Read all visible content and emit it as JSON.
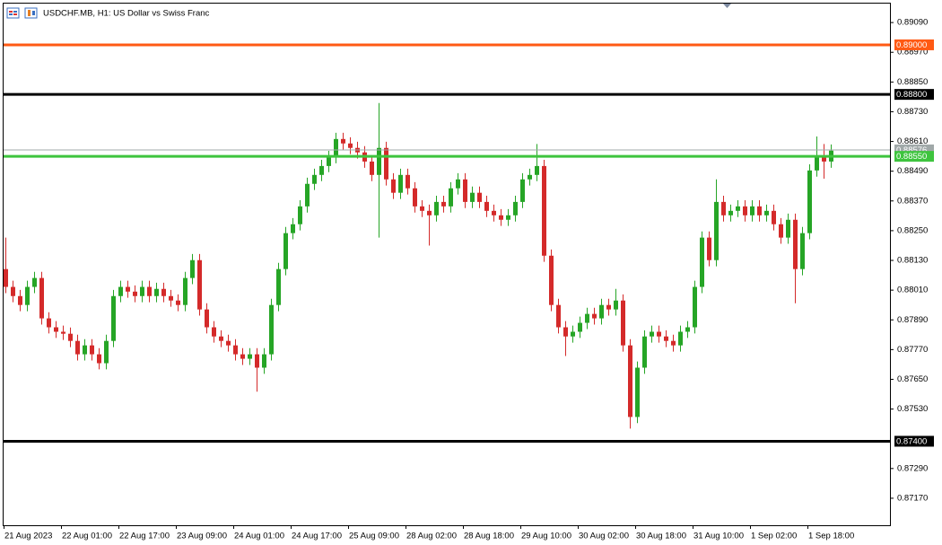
{
  "chart_data": {
    "type": "candlestick",
    "title": "USDCHF.MB, H1:  US Dollar vs Swiss Franc",
    "categories": [
      "21 Aug 2023",
      null,
      null,
      null,
      null,
      null,
      null,
      null,
      "22 Aug 01:00",
      null,
      null,
      null,
      null,
      null,
      null,
      null,
      "22 Aug 17:00",
      null,
      null,
      null,
      null,
      null,
      null,
      null,
      "23 Aug 09:00",
      null,
      null,
      null,
      null,
      null,
      null,
      null,
      "24 Aug 01:00",
      null,
      null,
      null,
      null,
      null,
      null,
      null,
      "24 Aug 17:00",
      null,
      null,
      null,
      null,
      null,
      null,
      null,
      "25 Aug 09:00",
      null,
      null,
      null,
      null,
      null,
      null,
      null,
      "28 Aug 02:00",
      null,
      null,
      null,
      null,
      null,
      null,
      null,
      "28 Aug 18:00",
      null,
      null,
      null,
      null,
      null,
      null,
      null,
      "29 Aug 10:00",
      null,
      null,
      null,
      null,
      null,
      null,
      null,
      "30 Aug 02:00",
      null,
      null,
      null,
      null,
      null,
      null,
      null,
      "30 Aug 18:00",
      null,
      null,
      null,
      null,
      null,
      null,
      null,
      "31 Aug 10:00",
      null,
      null,
      null,
      null,
      null,
      null,
      null,
      "1 Sep 02:00",
      null,
      null,
      null,
      null,
      null,
      null,
      null,
      "1 Sep 18:00",
      null,
      null,
      null
    ],
    "open": [
      0.88095,
      0.88023,
      0.87986,
      0.8795,
      0.88023,
      0.88059,
      0.87896,
      0.8786,
      0.87842,
      0.87834,
      0.87805,
      0.87751,
      0.87787,
      0.87751,
      0.87715,
      0.87805,
      0.87986,
      0.88023,
      0.88004,
      0.87986,
      0.88023,
      0.87986,
      0.88015,
      0.87986,
      0.87968,
      0.8795,
      0.88059,
      0.88131,
      0.87932,
      0.8786,
      0.87823,
      0.87805,
      0.87787,
      0.87751,
      0.87733,
      0.87751,
      0.87697,
      0.87751,
      0.8795,
      0.88095,
      0.8824,
      0.88276,
      0.88348,
      0.88439,
      0.88475,
      0.88511,
      0.88547,
      0.8862,
      0.88602,
      0.88584,
      0.88566,
      0.88529,
      0.88475,
      0.88584,
      0.88457,
      0.88403,
      0.88475,
      0.88421,
      0.88348,
      0.8833,
      0.88312,
      0.88366,
      0.88348,
      0.88421,
      0.88457,
      0.88366,
      0.88403,
      0.88366,
      0.8833,
      0.88312,
      0.88294,
      0.88312,
      0.88366,
      0.88457,
      0.88475,
      0.88511,
      0.88149,
      0.8795,
      0.8786,
      0.87823,
      0.87842,
      0.87878,
      0.87914,
      0.87896,
      0.8795,
      0.87932,
      0.87968,
      0.87787,
      0.87498,
      0.87697,
      0.87823,
      0.87842,
      0.87823,
      0.87805,
      0.87787,
      0.87842,
      0.8786,
      0.88023,
      0.88222,
      0.88131,
      0.88366,
      0.88312,
      0.8833,
      0.88348,
      0.88312,
      0.88348,
      0.88312,
      0.8833,
      0.88276,
      0.88222,
      0.88294,
      0.88095,
      0.8824,
      0.88493,
      0.88547,
      0.88529
    ],
    "high": [
      0.88222,
      0.88048,
      0.88011,
      0.88048,
      0.88084,
      0.88084,
      0.87921,
      0.87885,
      0.87867,
      0.87859,
      0.8783,
      0.87812,
      0.87812,
      0.87776,
      0.8783,
      0.88011,
      0.88048,
      0.88048,
      0.88029,
      0.88048,
      0.88048,
      0.8804,
      0.8804,
      0.88011,
      0.87993,
      0.88084,
      0.88156,
      0.88156,
      0.87957,
      0.87885,
      0.87848,
      0.8783,
      0.87812,
      0.87776,
      0.87776,
      0.87776,
      0.87776,
      0.87975,
      0.8812,
      0.88265,
      0.88301,
      0.88373,
      0.88464,
      0.885,
      0.88536,
      0.88572,
      0.88645,
      0.88645,
      0.88627,
      0.88609,
      0.88591,
      0.88554,
      0.88765,
      0.88609,
      0.88482,
      0.885,
      0.885,
      0.88446,
      0.88373,
      0.88355,
      0.88391,
      0.88391,
      0.88446,
      0.88482,
      0.88482,
      0.88428,
      0.88428,
      0.88391,
      0.88355,
      0.88337,
      0.88337,
      0.88391,
      0.88482,
      0.885,
      0.886,
      0.88536,
      0.88174,
      0.87975,
      0.87885,
      0.87867,
      0.87903,
      0.87939,
      0.87939,
      0.87975,
      0.87975,
      0.88015,
      0.87993,
      0.87812,
      0.87722,
      0.87848,
      0.87867,
      0.87867,
      0.87848,
      0.8783,
      0.87867,
      0.87885,
      0.88048,
      0.88247,
      0.88247,
      0.88457,
      0.88391,
      0.88355,
      0.88373,
      0.88373,
      0.88373,
      0.88373,
      0.88355,
      0.88355,
      0.88301,
      0.88319,
      0.88319,
      0.88265,
      0.88518,
      0.8863,
      0.886,
      0.88598
    ],
    "low": [
      0.87998,
      0.87961,
      0.87925,
      0.87925,
      0.87998,
      0.87871,
      0.87835,
      0.87817,
      0.87809,
      0.8778,
      0.87726,
      0.87726,
      0.87726,
      0.8769,
      0.8769,
      0.8778,
      0.87961,
      0.87979,
      0.87961,
      0.87961,
      0.87961,
      0.87961,
      0.87961,
      0.87943,
      0.87925,
      0.87925,
      0.88034,
      0.87907,
      0.87835,
      0.87798,
      0.8778,
      0.87762,
      0.87726,
      0.87708,
      0.87708,
      0.876,
      0.87672,
      0.87726,
      0.87925,
      0.8807,
      0.88215,
      0.88251,
      0.88323,
      0.88414,
      0.8845,
      0.88486,
      0.88522,
      0.88577,
      0.88559,
      0.88541,
      0.88504,
      0.8845,
      0.88222,
      0.88432,
      0.88378,
      0.88378,
      0.88396,
      0.88323,
      0.88305,
      0.8819,
      0.88287,
      0.88323,
      0.88323,
      0.88396,
      0.88341,
      0.88341,
      0.88341,
      0.88305,
      0.88287,
      0.88269,
      0.88269,
      0.88287,
      0.88341,
      0.88432,
      0.8845,
      0.88124,
      0.87925,
      0.87835,
      0.87744,
      0.87798,
      0.87817,
      0.87853,
      0.87871,
      0.87871,
      0.87907,
      0.87907,
      0.87762,
      0.87451,
      0.87473,
      0.87672,
      0.87798,
      0.87798,
      0.8778,
      0.87762,
      0.87762,
      0.87817,
      0.87835,
      0.87998,
      0.88106,
      0.88106,
      0.88287,
      0.88287,
      0.88305,
      0.88287,
      0.88287,
      0.88287,
      0.88287,
      0.88251,
      0.88197,
      0.88197,
      0.87957,
      0.8807,
      0.88215,
      0.88468,
      0.8846,
      0.88504
    ],
    "close": [
      0.88023,
      0.87986,
      0.8795,
      0.88023,
      0.88059,
      0.87896,
      0.8786,
      0.87842,
      0.87834,
      0.87805,
      0.87751,
      0.87787,
      0.87751,
      0.87715,
      0.87805,
      0.87986,
      0.88023,
      0.88004,
      0.87986,
      0.88023,
      0.87986,
      0.88015,
      0.87986,
      0.87968,
      0.8795,
      0.88059,
      0.88131,
      0.87932,
      0.8786,
      0.87823,
      0.87805,
      0.87787,
      0.87751,
      0.87733,
      0.87751,
      0.87697,
      0.87751,
      0.8795,
      0.88095,
      0.8824,
      0.88276,
      0.88348,
      0.88439,
      0.88475,
      0.88511,
      0.88547,
      0.8862,
      0.88602,
      0.88584,
      0.88566,
      0.88529,
      0.88475,
      0.88584,
      0.88457,
      0.88403,
      0.88475,
      0.88421,
      0.88348,
      0.8833,
      0.88312,
      0.88366,
      0.88348,
      0.88421,
      0.88457,
      0.88366,
      0.88403,
      0.88366,
      0.8833,
      0.88312,
      0.88294,
      0.88312,
      0.88366,
      0.88457,
      0.88475,
      0.88511,
      0.88149,
      0.8795,
      0.8786,
      0.87823,
      0.87842,
      0.87878,
      0.87914,
      0.87896,
      0.8795,
      0.87932,
      0.87968,
      0.87787,
      0.87498,
      0.87697,
      0.87823,
      0.87842,
      0.87823,
      0.87805,
      0.87787,
      0.87842,
      0.8786,
      0.88023,
      0.88222,
      0.88131,
      0.88366,
      0.88312,
      0.8833,
      0.88348,
      0.88312,
      0.88348,
      0.88312,
      0.8833,
      0.88276,
      0.88222,
      0.88294,
      0.88095,
      0.8824,
      0.88493,
      0.88547,
      0.88529,
      0.88573
    ],
    "up_color": "#26a526",
    "down_color": "#d42a2a",
    "ylim": [
      0.87061,
      0.89181
    ],
    "yticks": [
      {
        "value": 0.8909,
        "label": "0.89090"
      },
      {
        "value": 0.8897,
        "label": "0.88970"
      },
      {
        "value": 0.8885,
        "label": "0.88850"
      },
      {
        "value": 0.8873,
        "label": "0.88730"
      },
      {
        "value": 0.8861,
        "label": "0.88610"
      },
      {
        "value": 0.8849,
        "label": "0.88490"
      },
      {
        "value": 0.8837,
        "label": "0.88370"
      },
      {
        "value": 0.8825,
        "label": "0.88250"
      },
      {
        "value": 0.8813,
        "label": "0.88130"
      },
      {
        "value": 0.8801,
        "label": "0.88010"
      },
      {
        "value": 0.8789,
        "label": "0.87890"
      },
      {
        "value": 0.8777,
        "label": "0.87770"
      },
      {
        "value": 0.8765,
        "label": "0.87650"
      },
      {
        "value": 0.8753,
        "label": "0.87530"
      },
      {
        "value": 0.8729,
        "label": "0.87290"
      },
      {
        "value": 0.8717,
        "label": "0.87170"
      }
    ],
    "levels": [
      {
        "value": 0.89,
        "label": "0.89000",
        "color": "#ff5a14"
      },
      {
        "value": 0.888,
        "label": "0.88800",
        "color": "#000000"
      },
      {
        "value": 0.88576,
        "label": "0.88576",
        "color": "#a0a8a8"
      },
      {
        "value": 0.8855,
        "label": "0.88550",
        "color": "#3ec43e"
      },
      {
        "value": 0.874,
        "label": "0.87400",
        "color": "#000000"
      }
    ]
  }
}
